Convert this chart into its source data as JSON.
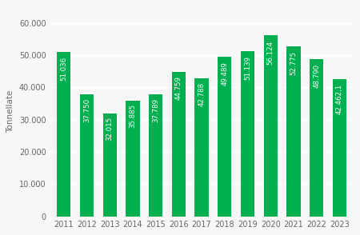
{
  "years": [
    2011,
    2012,
    2013,
    2014,
    2015,
    2016,
    2017,
    2018,
    2019,
    2020,
    2021,
    2022,
    2023
  ],
  "values": [
    51036,
    37750,
    32015,
    35885,
    37789,
    44759,
    42788,
    49489,
    51139,
    56124,
    52775,
    48790,
    42462.1
  ],
  "labels": [
    "51.036",
    "37.750",
    "32.015",
    "35.885",
    "37.789",
    "44.759",
    "42.788",
    "49.489",
    "51.139",
    "56.124",
    "52.775",
    "48.790",
    "42.462,1"
  ],
  "bar_color": "#00b050",
  "ylabel": "Tonnellate",
  "ylim": [
    0,
    65000
  ],
  "yticks": [
    0,
    10000,
    20000,
    30000,
    40000,
    50000,
    60000
  ],
  "ytick_labels": [
    "0",
    "10.000",
    "20.000",
    "30.000",
    "40.000",
    "50.000",
    "60.000"
  ],
  "background_color": "#f7f7f7",
  "grid_color": "#ffffff",
  "label_fontsize": 6.2,
  "ylabel_fontsize": 7.5,
  "tick_fontsize": 7.0,
  "bar_width": 0.6
}
